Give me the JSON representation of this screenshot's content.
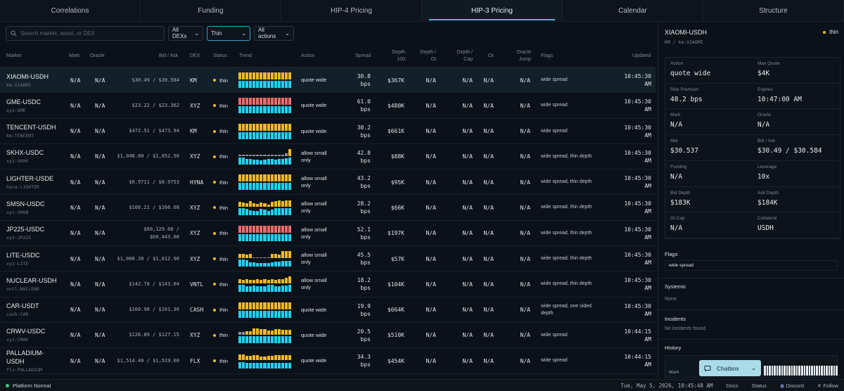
{
  "tabs": [
    "Correlations",
    "Funding",
    "HIP-4 Pricing",
    "HIP-3 Pricing",
    "Calendar",
    "Structure"
  ],
  "active_tab": "HIP-3 Pricing",
  "filters": {
    "search_placeholder": "Search market, asset, or DEX",
    "dex": "All DEXs",
    "status": "Thin",
    "action": "All actions"
  },
  "columns": {
    "market": "Market",
    "mark": "Mark",
    "oracle": "Oracle",
    "bid_ask": "Bid / Ask",
    "dex": "DEX",
    "status": "Status",
    "trend": "Trend",
    "action": "Action",
    "spread": "Spread",
    "depth100_1": "Depth",
    "depth100_2": "100",
    "depth_oi_1": "Depth /",
    "depth_oi_2": "OI",
    "depth_cap_1": "Depth /",
    "depth_cap_2": "Cap",
    "oi": "OI",
    "oracle_jump_1": "Oracle",
    "oracle_jump_2": "Jump",
    "flags": "Flags",
    "updated": "Updated"
  },
  "trend_colors": {
    "y": "#f5b824",
    "r": "#ef6b6b",
    "g": "#8b949c",
    "c": "#1fd0f3"
  },
  "rows": [
    {
      "name": "XIAOMI-USDH",
      "sub": "km:XIAOMI",
      "mark": "N/A",
      "oracle": "N/A",
      "ba1": "$30.49 / $30.584",
      "ba2": "",
      "dex": "KM",
      "status": "thin",
      "act1": "quote wide",
      "act2": "",
      "spr1": "30.8",
      "spr2": "bps",
      "depth": "$367K",
      "doi": "N/A",
      "dcap": "N/A",
      "oi": "N/A",
      "oj": "N/A",
      "flag1": "wide spread",
      "flag2": "",
      "time": "10:45:30",
      "ampm": "AM",
      "top": "yyyyyyyyyyyyyyy",
      "topH": [
        1,
        1,
        1,
        1,
        1,
        1,
        1,
        1,
        1,
        1,
        1,
        1,
        1,
        1,
        1
      ],
      "botH": [
        1,
        1,
        1,
        1,
        1,
        1,
        1,
        1,
        1,
        1,
        1,
        1,
        1,
        1,
        1
      ]
    },
    {
      "name": "GME-USDC",
      "sub": "xyz:GME",
      "mark": "N/A",
      "oracle": "N/A",
      "ba1": "$23.22 / $23.362",
      "ba2": "",
      "dex": "XYZ",
      "status": "thin",
      "act1": "quote wide",
      "act2": "",
      "spr1": "61.0",
      "spr2": "bps",
      "depth": "$480K",
      "doi": "N/A",
      "dcap": "N/A",
      "oi": "N/A",
      "oj": "N/A",
      "flag1": "wide spread",
      "flag2": "",
      "time": "10:45:30",
      "ampm": "AM",
      "top": "rrrrrrrrrrrrrrr",
      "topH": [
        1,
        1,
        1,
        1,
        1,
        1,
        1,
        1,
        1,
        1,
        1,
        1,
        1,
        1,
        1
      ],
      "botH": [
        1,
        1,
        1,
        1,
        1,
        1,
        1,
        1,
        1,
        1,
        1,
        1,
        1,
        1,
        1
      ]
    },
    {
      "name": "TENCENT-USDH",
      "sub": "km:TENCENT",
      "mark": "N/A",
      "oracle": "N/A",
      "ba1": "$472.51 / $473.94",
      "ba2": "",
      "dex": "KM",
      "status": "thin",
      "act1": "quote wide",
      "act2": "",
      "spr1": "30.2",
      "spr2": "bps",
      "depth": "$661K",
      "doi": "N/A",
      "dcap": "N/A",
      "oi": "N/A",
      "oj": "N/A",
      "flag1": "wide spread",
      "flag2": "",
      "time": "10:45:30",
      "ampm": "AM",
      "top": "yyyyyyyyyyyyyyy",
      "topH": [
        1,
        1,
        1,
        1,
        1,
        1,
        1,
        1,
        1,
        1,
        1,
        1,
        1,
        1,
        1
      ],
      "botH": [
        1,
        1,
        1,
        1,
        1,
        1,
        1,
        1,
        1,
        1,
        1,
        1,
        1,
        1,
        1
      ]
    },
    {
      "name": "SKHX-USDC",
      "sub": "xyz:SKHX",
      "mark": "N/A",
      "oracle": "N/A",
      "ba1": "$1,048.00 / $1,052.50",
      "ba2": "",
      "dex": "XYZ",
      "status": "thin",
      "act1": "allow small",
      "act2": "only",
      "spr1": "42.8",
      "spr2": "bps",
      "depth": "$88K",
      "doi": "N/A",
      "dcap": "N/A",
      "oi": "N/A",
      "oj": "N/A",
      "flag1": "wide spread, thin depth",
      "flag2": "",
      "time": "10:45:30",
      "ampm": "AM",
      "top": "ggggggggggggggy",
      "topH": [
        0.15,
        0.15,
        0.15,
        0.15,
        0.15,
        0.15,
        0.15,
        0.15,
        0.15,
        0.15,
        0.15,
        0.15,
        0.2,
        0.35,
        1
      ],
      "botH": [
        1,
        1,
        0.8,
        0.8,
        0.7,
        0.7,
        0.6,
        0.7,
        0.8,
        0.8,
        0.7,
        0.8,
        0.8,
        0.9,
        1
      ]
    },
    {
      "name": "LIGHTER-USDE",
      "sub": "hyna:LIGHTER",
      "mark": "N/A",
      "oracle": "N/A",
      "ba1": "$0.9711 / $0.9753",
      "ba2": "",
      "dex": "HYNA",
      "status": "thin",
      "act1": "allow small",
      "act2": "only",
      "spr1": "43.2",
      "spr2": "bps",
      "depth": "$95K",
      "doi": "N/A",
      "dcap": "N/A",
      "oi": "N/A",
      "oj": "N/A",
      "flag1": "wide spread, thin depth",
      "flag2": "",
      "time": "10:45:30",
      "ampm": "AM",
      "top": "yyyyyyyyyyyyyyy",
      "topH": [
        1,
        1,
        1,
        1,
        1,
        1,
        1,
        1,
        1,
        1,
        1,
        1,
        1,
        1,
        1
      ],
      "botH": [
        1,
        1,
        1,
        1,
        1,
        1,
        1,
        1,
        1,
        1,
        1,
        1,
        1,
        1,
        1
      ]
    },
    {
      "name": "SMSN-USDC",
      "sub": "xyz:SMSN",
      "mark": "N/A",
      "oracle": "N/A",
      "ba1": "$166.21 / $166.68",
      "ba2": "",
      "dex": "XYZ",
      "status": "thin",
      "act1": "allow small",
      "act2": "only",
      "spr1": "28.2",
      "spr2": "bps",
      "depth": "$66K",
      "doi": "N/A",
      "dcap": "N/A",
      "oi": "N/A",
      "oj": "N/A",
      "flag1": "wide spread, thin depth",
      "flag2": "",
      "time": "10:45:30",
      "ampm": "AM",
      "top": "yyyyyyyyyyyyyyy",
      "topH": [
        0.7,
        0.6,
        0.5,
        0.8,
        0.5,
        0.4,
        0.6,
        0.5,
        0.3,
        0.7,
        0.8,
        0.9,
        0.8,
        0.9,
        0.9
      ],
      "botH": [
        1,
        1,
        0.9,
        0.7,
        0.6,
        0.6,
        0.9,
        0.8,
        0.6,
        0.8,
        1,
        1,
        1,
        1,
        1
      ]
    },
    {
      "name": "JP225-USDC",
      "sub": "xyz:JP225",
      "mark": "N/A",
      "oracle": "N/A",
      "ba1": "$60,129.00 /",
      "ba2": "$60,443.00",
      "dex": "XYZ",
      "status": "thin",
      "act1": "allow small",
      "act2": "only",
      "spr1": "52.1",
      "spr2": "bps",
      "depth": "$197K",
      "doi": "N/A",
      "dcap": "N/A",
      "oi": "N/A",
      "oj": "N/A",
      "flag1": "wide spread, thin depth",
      "flag2": "",
      "time": "10:45:30",
      "ampm": "AM",
      "top": "rrrrrrrrrrrrrrr",
      "topH": [
        1,
        1,
        1,
        1,
        1,
        1,
        1,
        1,
        1,
        1,
        1,
        1,
        1,
        1,
        1
      ],
      "botH": [
        1,
        1,
        1,
        1,
        1,
        1,
        1,
        1,
        1,
        1,
        1,
        1,
        1,
        1,
        1
      ]
    },
    {
      "name": "LITE-USDC",
      "sub": "xyz:LITE",
      "mark": "N/A",
      "oracle": "N/A",
      "ba1": "$1,008.30 / $1,012.90",
      "ba2": "",
      "dex": "XYZ",
      "status": "thin",
      "act1": "allow small",
      "act2": "only",
      "spr1": "45.5",
      "spr2": "bps",
      "depth": "$57K",
      "doi": "N/A",
      "dcap": "N/A",
      "oi": "N/A",
      "oj": "N/A",
      "flag1": "wide spread, thin depth",
      "flag2": "",
      "time": "10:45:30",
      "ampm": "AM",
      "top": "yyyygggggyyyyyy",
      "topH": [
        0.6,
        0.6,
        0.5,
        0.6,
        0.15,
        0.15,
        0.15,
        0.15,
        0.15,
        0.6,
        0.6,
        0.5,
        1,
        1,
        1
      ],
      "botH": [
        1,
        1,
        0.9,
        0.6,
        0.6,
        0.5,
        0.5,
        0.5,
        0.5,
        0.6,
        0.7,
        0.7,
        0.8,
        0.8,
        0.8
      ]
    },
    {
      "name": "NUCLEAR-USDH",
      "sub": "vntl:NUCLEAR",
      "mark": "N/A",
      "oracle": "N/A",
      "ba1": "$142.78 / $143.04",
      "ba2": "",
      "dex": "VNTL",
      "status": "thin",
      "act1": "allow small",
      "act2": "only",
      "spr1": "18.2",
      "spr2": "bps",
      "depth": "$104K",
      "doi": "N/A",
      "dcap": "N/A",
      "oi": "N/A",
      "oj": "N/A",
      "flag1": "wide spread, thin depth",
      "flag2": "",
      "time": "10:45:30",
      "ampm": "AM",
      "top": "yyyyyyyyyyyyyyy",
      "topH": [
        0.6,
        0.5,
        0.6,
        0.5,
        0.5,
        0.6,
        0.5,
        0.6,
        0.5,
        0.6,
        0.5,
        0.6,
        0.6,
        0.8,
        1
      ],
      "botH": [
        1,
        1,
        0.8,
        0.8,
        0.9,
        0.8,
        0.8,
        0.8,
        1,
        1,
        0.8,
        0.8,
        0.9,
        0.9,
        1
      ]
    },
    {
      "name": "CAR-USDT",
      "sub": "cash:CAR",
      "mark": "N/A",
      "oracle": "N/A",
      "ba1": "$160.98 / $161.30",
      "ba2": "",
      "dex": "CASH",
      "status": "thin",
      "act1": "quote wide",
      "act2": "",
      "spr1": "19.9",
      "spr2": "bps",
      "depth": "$664K",
      "doi": "N/A",
      "dcap": "N/A",
      "oi": "N/A",
      "oj": "N/A",
      "flag1": "wide spread, one sided",
      "flag2": "depth",
      "time": "10:45:30",
      "ampm": "AM",
      "top": "yyyyyyyyyyyyyyy",
      "topH": [
        1,
        1,
        1,
        1,
        1,
        1,
        1,
        1,
        1,
        1,
        1,
        1,
        1,
        1,
        1
      ],
      "botH": [
        1,
        1,
        1,
        1,
        1,
        1,
        1,
        1,
        1,
        1,
        1,
        1,
        1,
        1,
        1
      ]
    },
    {
      "name": "CRWV-USDC",
      "sub": "xyz:CRWV",
      "mark": "N/A",
      "oracle": "N/A",
      "ba1": "$126.89 / $127.15",
      "ba2": "",
      "dex": "XYZ",
      "status": "thin",
      "act1": "quote wide",
      "act2": "",
      "spr1": "20.5",
      "spr2": "bps",
      "depth": "$510K",
      "doi": "N/A",
      "dcap": "N/A",
      "oi": "N/A",
      "oj": "N/A",
      "flag1": "wide spread",
      "flag2": "",
      "time": "10:44:15",
      "ampm": "AM",
      "top": "ggyyyyyyyyyyyyy",
      "topH": [
        0.4,
        0.4,
        0.5,
        0.5,
        0.9,
        0.9,
        0.8,
        0.8,
        0.6,
        0.6,
        0.8,
        0.8,
        0.7,
        0.7,
        0.7
      ],
      "botH": [
        1,
        1,
        1,
        1,
        1,
        1,
        1,
        1,
        1,
        1,
        1,
        1,
        1,
        1,
        1
      ]
    },
    {
      "name": "PALLADIUM-",
      "sub": "flx:PALLADIUM",
      "name2": "USDH",
      "mark": "N/A",
      "oracle": "N/A",
      "ba1": "$1,514.40 / $1,519.60",
      "ba2": "",
      "dex": "FLX",
      "status": "thin",
      "act1": "quote wide",
      "act2": "",
      "spr1": "34.3",
      "spr2": "bps",
      "depth": "$454K",
      "doi": "N/A",
      "dcap": "N/A",
      "oi": "N/A",
      "oj": "N/A",
      "flag1": "wide spread",
      "flag2": "",
      "time": "10:44:15",
      "ampm": "AM",
      "top": "yyyyyyyyyyyyyyy",
      "topH": [
        0.8,
        0.8,
        0.6,
        0.6,
        0.7,
        0.7,
        0.5,
        0.5,
        0.6,
        0.6,
        0.7,
        0.7,
        0.7,
        0.7,
        0.7
      ],
      "botH": [
        0.9,
        0.9,
        0.8,
        0.8,
        0.8,
        0.8,
        0.8,
        0.8,
        0.8,
        0.8,
        0.8,
        0.8,
        0.8,
        0.8,
        0.8
      ]
    }
  ],
  "side": {
    "title": "XIAOMI-USDH",
    "subtitle": "KM / km:XIAOMI",
    "status": "thin",
    "fields": [
      {
        "k": "Action",
        "v": "quote wide"
      },
      {
        "k": "Max Quote",
        "v": "$4K"
      },
      {
        "k": "Risk Premium",
        "v": "48.2 bps"
      },
      {
        "k": "Expires",
        "v": "10:47:00 AM"
      },
      {
        "k": "Mark",
        "v": "N/A"
      },
      {
        "k": "Oracle",
        "v": "N/A"
      },
      {
        "k": "Mid",
        "v": "$30.537"
      },
      {
        "k": "Bid / Ask",
        "v": "$30.49 / $30.584"
      },
      {
        "k": "Funding",
        "v": "N/A"
      },
      {
        "k": "Leverage",
        "v": "10x"
      },
      {
        "k": "Bid Depth",
        "v": "$183K"
      },
      {
        "k": "Ask Depth",
        "v": "$184K"
      },
      {
        "k": "OI Cap",
        "v": "N/A"
      },
      {
        "k": "Collateral",
        "v": "USDH"
      }
    ],
    "flags_title": "Flags",
    "flags_value": "wide spread",
    "systemic_title": "Systemic",
    "systemic_value": "None",
    "incidents_title": "Incidents",
    "incidents_value": "No incidents found.",
    "history_title": "History",
    "history_label": "Mark"
  },
  "chatbox": "Chatbox",
  "status_bar": {
    "platform": "Platform Normal",
    "datetime": "Tue, May 5, 2026, 10:45:48 AM",
    "docs": "Docs",
    "status": "Status",
    "discord": "Discord",
    "follow": "Follow"
  }
}
